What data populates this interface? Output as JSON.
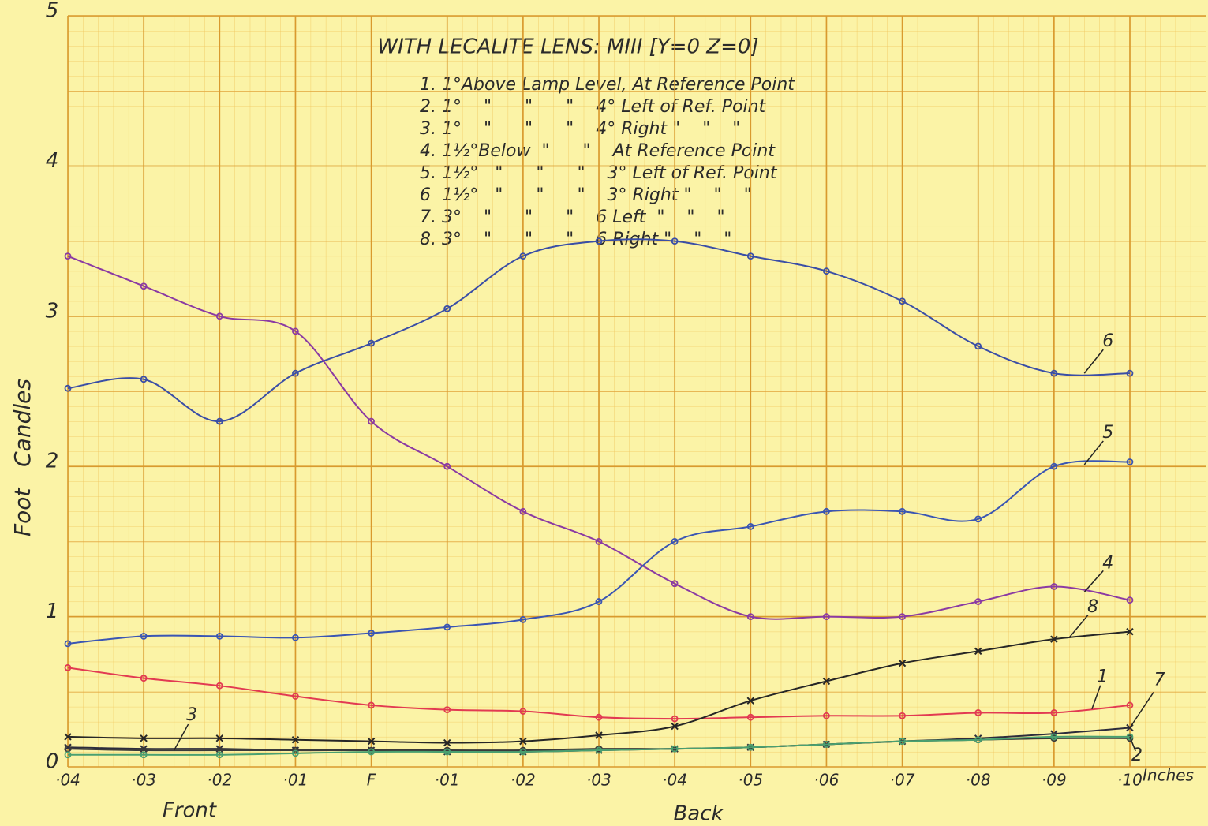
{
  "chart_data": {
    "type": "line",
    "title": "WITH LECALITE LENS: MIII [Y=0 Z=0]",
    "key": [
      "1. 1°Above Lamp Level, At Reference Point",
      "2. 1°    \"      \"      \"    4° Left of Ref. Point",
      "3. 1°    \"      \"      \"    4° Right \"    \"    \"",
      "4. 1½°Below  \"      \"    At Reference Point",
      "5. 1½°   \"      \"      \"    3° Left of Ref. Point",
      "6  1½°   \"      \"      \"    3° Right \"    \"    \"",
      "7. 3°    \"      \"      \"    6 Left  \"    \"    \"",
      "8. 3°    \"      \"      \"    6 Right \"    \"    \""
    ],
    "y_label": "Foot   Candles",
    "x_unit": "Inches",
    "x_side_labels": [
      "Front",
      "Back"
    ],
    "categories": [
      "·04",
      "·03",
      "·02",
      "·01",
      "F",
      "·01",
      "·02",
      "·03",
      "·04",
      "·05",
      "·06",
      "·07",
      "·08",
      "·09",
      "·10"
    ],
    "ylim": [
      0,
      5
    ],
    "yticks": [
      0,
      1,
      2,
      3,
      4,
      5
    ],
    "grid": true,
    "series": [
      {
        "name": "6",
        "color": "#3a4ea6",
        "marker": "o",
        "values": [
          2.52,
          2.58,
          2.3,
          2.62,
          2.82,
          3.05,
          3.4,
          3.5,
          3.5,
          3.4,
          3.3,
          3.1,
          2.8,
          2.62,
          2.62
        ]
      },
      {
        "name": "4",
        "color": "#8b3aa3",
        "marker": "o",
        "values": [
          3.4,
          3.2,
          3.0,
          2.9,
          2.3,
          2.0,
          1.7,
          1.5,
          1.22,
          1.0,
          1.0,
          1.0,
          1.1,
          1.2,
          1.11
        ]
      },
      {
        "name": "5",
        "color": "#3a55b3",
        "marker": "o",
        "values": [
          0.82,
          0.87,
          0.87,
          0.86,
          0.89,
          0.93,
          0.98,
          1.1,
          1.5,
          1.6,
          1.7,
          1.7,
          1.65,
          2.0,
          2.03
        ]
      },
      {
        "name": "1",
        "color": "#e23a52",
        "marker": "o",
        "values": [
          0.66,
          0.59,
          0.54,
          0.47,
          0.41,
          0.38,
          0.37,
          0.33,
          0.32,
          0.33,
          0.34,
          0.34,
          0.36,
          0.36,
          0.41
        ]
      },
      {
        "name": "8",
        "color": "#262626",
        "marker": "x",
        "values": [
          0.2,
          0.19,
          0.19,
          0.18,
          0.17,
          0.16,
          0.17,
          0.21,
          0.27,
          0.44,
          0.57,
          0.69,
          0.77,
          0.85,
          0.9
        ]
      },
      {
        "name": "7",
        "color": "#2c2c3c",
        "marker": "x",
        "values": [
          0.13,
          0.12,
          0.12,
          0.11,
          0.11,
          0.1,
          0.1,
          0.11,
          0.12,
          0.13,
          0.15,
          0.17,
          0.19,
          0.22,
          0.26
        ]
      },
      {
        "name": "3",
        "color": "#3a3a3a",
        "marker": "o",
        "values": [
          0.12,
          0.11,
          0.11,
          0.11,
          0.11,
          0.11,
          0.11,
          0.12,
          0.12,
          0.13,
          0.15,
          0.17,
          0.18,
          0.19,
          0.19
        ]
      },
      {
        "name": "2",
        "color": "#4aa070",
        "marker": "o",
        "values": [
          0.08,
          0.08,
          0.08,
          0.09,
          0.1,
          0.1,
          0.1,
          0.11,
          0.12,
          0.13,
          0.15,
          0.17,
          0.18,
          0.2,
          0.2
        ]
      }
    ]
  }
}
